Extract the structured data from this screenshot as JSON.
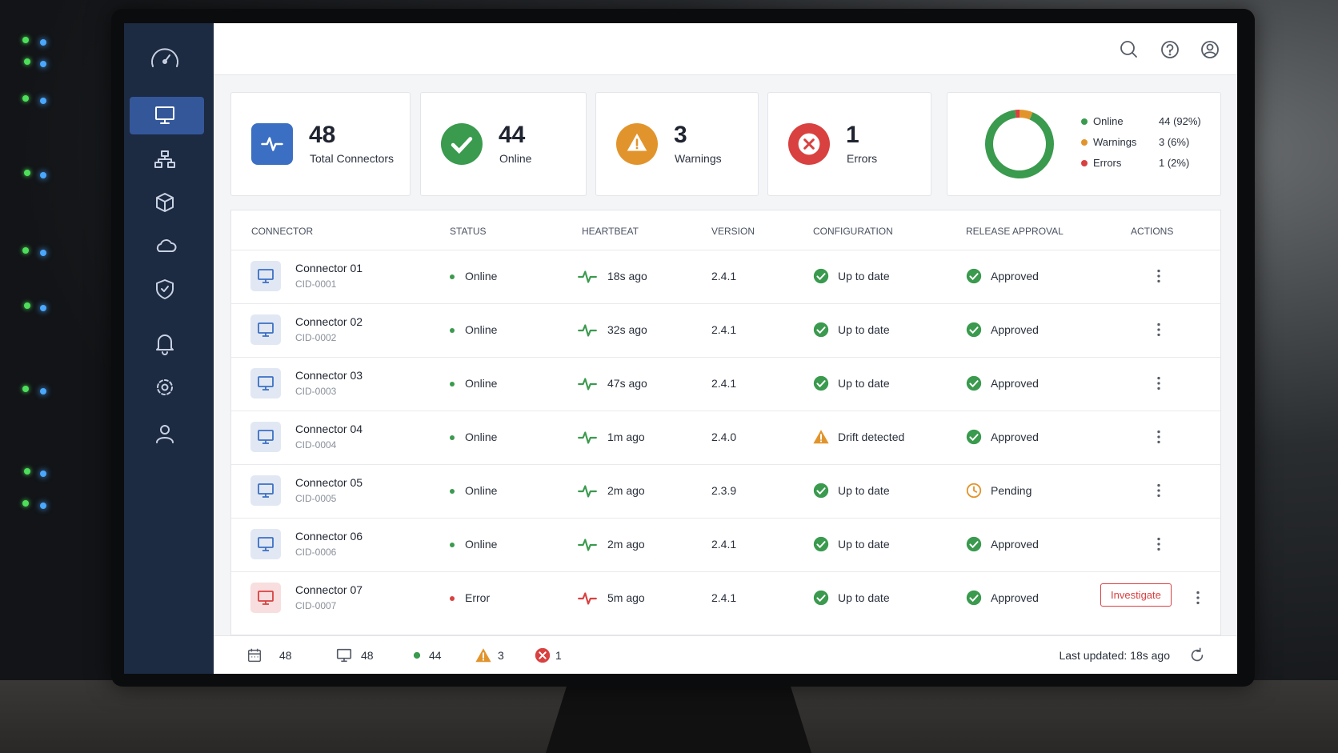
{
  "cards": [
    {
      "value": 48,
      "label": "Total Connectors",
      "color": "#3b6fc4",
      "icon": "pulse"
    },
    {
      "value": 44,
      "label": "Online",
      "color": "#3a9a4e",
      "icon": "check"
    },
    {
      "value": 3,
      "label": "Warnings",
      "color": "#e2942c",
      "icon": "warning"
    },
    {
      "value": 1,
      "label": "Errors",
      "color": "#d94040",
      "icon": "error"
    }
  ],
  "status_chart": {
    "type": "donut",
    "series": [
      {
        "name": "Online",
        "value": 44,
        "value_label": "44 (92%)",
        "color": "#3a9a4e"
      },
      {
        "name": "Warnings",
        "value": 3,
        "value_label": "3 (6%)",
        "color": "#e2942c"
      },
      {
        "name": "Errors",
        "value": 1,
        "value_label": "1 (2%)",
        "color": "#d94040"
      }
    ]
  },
  "table": {
    "columns": [
      "CONNECTOR",
      "STATUS",
      "HEARTBEAT",
      "VERSION",
      "CONFIGURATION",
      "RELEASE APPROVAL",
      "ACTIONS"
    ],
    "rows": [
      {
        "name": "Connector 01",
        "id": "CID-0001",
        "icon_color": "#3b6fc4",
        "status": "Online",
        "status_color": "#3a9a4e",
        "heartbeat": "18s ago",
        "heartbeat_color": "#3a9a4e",
        "version": "2.4.1",
        "configuration": "Up to date",
        "configuration_icon": "check",
        "release_approval": "Approved",
        "release_icon": "check"
      },
      {
        "name": "Connector 02",
        "id": "CID-0002",
        "icon_color": "#3b6fc4",
        "status": "Online",
        "status_color": "#3a9a4e",
        "heartbeat": "32s ago",
        "heartbeat_color": "#3a9a4e",
        "version": "2.4.1",
        "configuration": "Up to date",
        "configuration_icon": "check",
        "release_approval": "Approved",
        "release_icon": "check"
      },
      {
        "name": "Connector 03",
        "id": "CID-0003",
        "icon_color": "#3b6fc4",
        "status": "Online",
        "status_color": "#3a9a4e",
        "heartbeat": "47s ago",
        "heartbeat_color": "#3a9a4e",
        "version": "2.4.1",
        "configuration": "Up to date",
        "configuration_icon": "check",
        "release_approval": "Approved",
        "release_icon": "check"
      },
      {
        "name": "Connector 04",
        "id": "CID-0004",
        "icon_color": "#3b6fc4",
        "status": "Online",
        "status_color": "#3a9a4e",
        "heartbeat": "1m ago",
        "heartbeat_color": "#3a9a4e",
        "version": "2.4.0",
        "configuration": "Drift detected",
        "configuration_icon": "warning",
        "release_approval": "Approved",
        "release_icon": "check"
      },
      {
        "name": "Connector 05",
        "id": "CID-0005",
        "icon_color": "#3b6fc4",
        "status": "Online",
        "status_color": "#3a9a4e",
        "heartbeat": "2m ago",
        "heartbeat_color": "#3a9a4e",
        "version": "2.3.9",
        "configuration": "Up to date",
        "configuration_icon": "check",
        "release_approval": "Pending",
        "release_icon": "clock"
      },
      {
        "name": "Connector 06",
        "id": "CID-0006",
        "icon_color": "#3b6fc4",
        "status": "Online",
        "status_color": "#3a9a4e",
        "heartbeat": "2m ago",
        "heartbeat_color": "#3a9a4e",
        "version": "2.4.1",
        "configuration": "Up to date",
        "configuration_icon": "check",
        "release_approval": "Approved",
        "release_icon": "check"
      },
      {
        "name": "Connector 07",
        "id": "CID-0007",
        "icon_color": "#d94040",
        "status": "Error",
        "status_color": "#d94040",
        "heartbeat": "5m ago",
        "heartbeat_color": "#d94040",
        "version": "2.4.1",
        "configuration": "Up to date",
        "configuration_icon": "check",
        "release_approval": "Approved",
        "release_icon": "check",
        "action": "Investigate"
      }
    ]
  },
  "footer": {
    "items": [
      {
        "icon": "calendar",
        "value": 48
      },
      {
        "icon": "monitor",
        "value": 48
      },
      {
        "icon": "dot",
        "value": 44
      },
      {
        "icon": "warning",
        "value": 3
      },
      {
        "icon": "error",
        "value": 1
      }
    ],
    "last_updated": "Last updated: 18s ago"
  }
}
